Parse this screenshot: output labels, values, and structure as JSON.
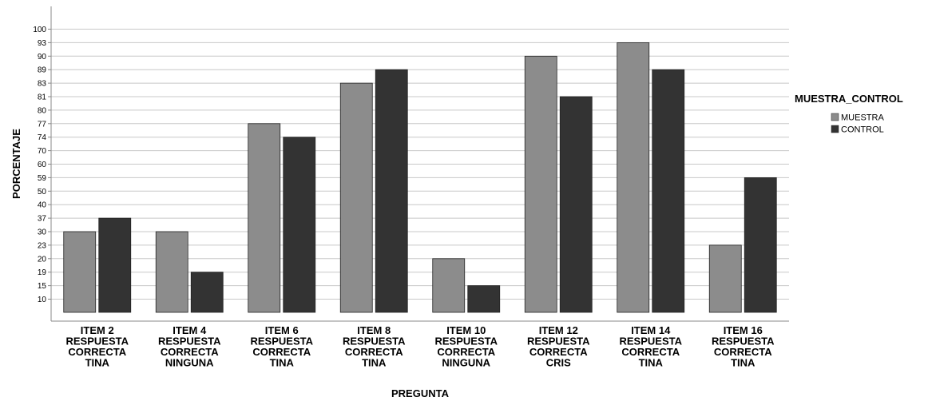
{
  "chart_data": {
    "type": "bar",
    "xlabel": "PREGUNTA",
    "ylabel": "PORCENTAJE",
    "categories": [
      [
        "ITEM 2",
        "RESPUESTA",
        "CORRECTA",
        "TINA"
      ],
      [
        "ITEM 4",
        "RESPUESTA",
        "CORRECTA",
        "NINGUNA"
      ],
      [
        "ITEM 6",
        "RESPUESTA",
        "CORRECTA",
        "TINA"
      ],
      [
        "ITEM 8",
        "RESPUESTA",
        "CORRECTA",
        "TINA"
      ],
      [
        "ITEM 10",
        "RESPUESTA",
        "CORRECTA",
        "NINGUNA"
      ],
      [
        "ITEM 12",
        "RESPUESTA",
        "CORRECTA",
        "CRIS"
      ],
      [
        "ITEM 14",
        "RESPUESTA",
        "CORRECTA",
        "TINA"
      ],
      [
        "ITEM 16",
        "RESPUESTA",
        "CORRECTA",
        "TINA"
      ]
    ],
    "y_ticks": [
      "10",
      "15",
      "19",
      "20",
      "23",
      "30",
      "37",
      "40",
      "50",
      "59",
      "60",
      "70",
      "74",
      "77",
      "80",
      "81",
      "83",
      "89",
      "90",
      "93",
      "100"
    ],
    "series": [
      {
        "name": "MUESTRA",
        "color": "#8c8c8c",
        "values": [
          "30",
          "30",
          "77",
          "83",
          "20",
          "90",
          "93",
          "23"
        ]
      },
      {
        "name": "CONTROL",
        "color": "#333333",
        "values": [
          "37",
          "19",
          "74",
          "89",
          "15",
          "81",
          "89",
          "59"
        ]
      }
    ],
    "legend": {
      "title": "MUESTRA_CONTROL",
      "position": "right"
    },
    "grid": true
  }
}
